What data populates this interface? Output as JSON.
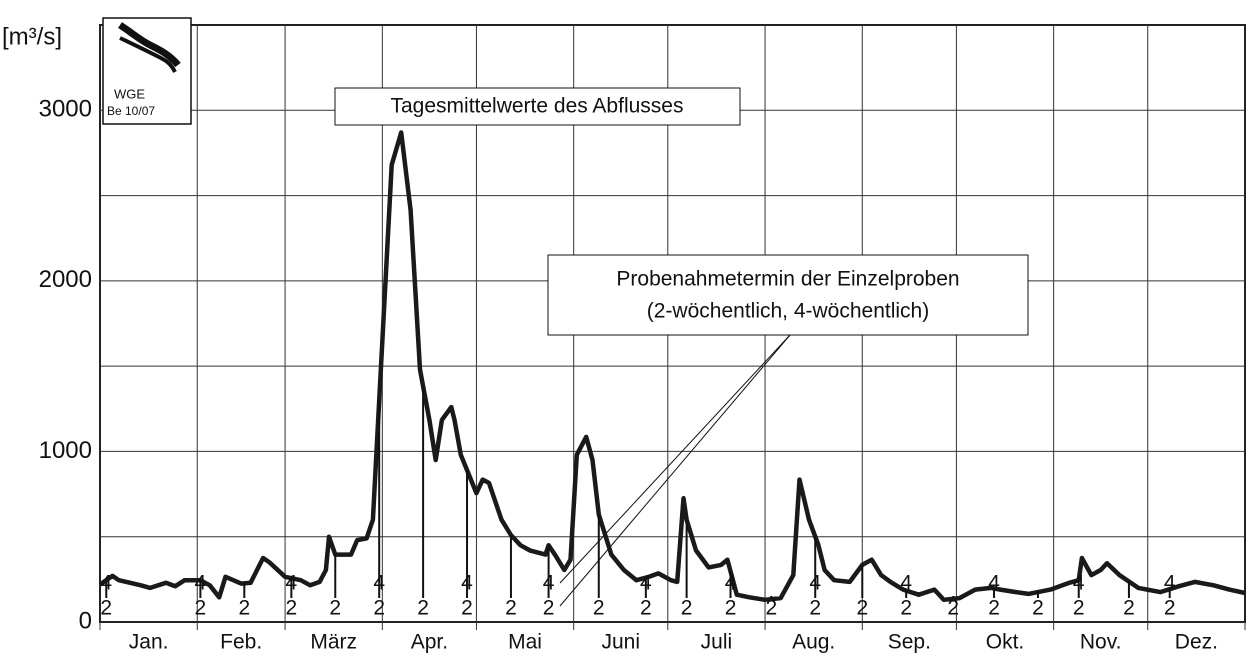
{
  "chart_data": {
    "type": "line",
    "ylabel": "[m³/s]",
    "title": "Tagesmittelwerte des Abflusses",
    "annotation": [
      "Probenahmetermin der Einzelproben",
      "(2-wöchentlich, 4-wöchentlich)"
    ],
    "logo": [
      "WGE",
      "Be 10/07"
    ],
    "months": [
      "Jan.",
      "Feb.",
      "März",
      "Apr.",
      "Mai",
      "Juni",
      "Juli",
      "Aug.",
      "Sep.",
      "Okt.",
      "Nov.",
      "Dez."
    ],
    "xlim": [
      0,
      365
    ],
    "xticks": [
      0,
      31,
      59,
      90,
      120,
      151,
      181,
      212,
      243,
      273,
      304,
      334,
      365
    ],
    "ylim": [
      0,
      3500
    ],
    "yticks": [
      0,
      1000,
      2000,
      3000
    ],
    "minor_yticks": [
      500,
      1500,
      2500,
      3500
    ],
    "grid": true,
    "color": "#1a1a1a",
    "x": [
      0,
      4,
      6,
      13,
      16,
      21,
      24,
      27,
      32,
      35,
      38,
      40,
      45,
      48,
      52,
      54,
      59,
      64,
      67,
      70,
      72,
      73,
      75,
      80,
      82,
      85,
      87,
      89,
      93,
      96,
      99,
      102,
      105,
      107,
      109,
      112,
      113,
      115,
      118,
      120,
      122,
      124,
      128,
      131,
      134,
      137,
      142,
      143,
      145,
      148,
      150,
      152,
      155,
      157,
      159,
      163,
      167,
      171,
      175,
      178,
      182,
      184,
      186,
      187,
      190,
      194,
      198,
      200,
      203,
      207,
      212,
      217,
      221,
      223,
      226,
      229,
      231,
      234,
      239,
      243,
      246,
      249,
      252,
      256,
      261,
      266,
      269,
      274,
      279,
      284,
      287,
      292,
      296,
      303,
      309,
      312,
      313,
      316,
      319,
      321,
      325,
      331,
      338,
      344,
      349,
      355,
      360,
      365
    ],
    "values": [
      220,
      270,
      245,
      215,
      200,
      230,
      210,
      245,
      245,
      215,
      145,
      265,
      225,
      230,
      375,
      350,
      265,
      245,
      215,
      235,
      305,
      500,
      395,
      395,
      480,
      490,
      600,
      1300,
      2680,
      2870,
      2415,
      1480,
      1185,
      950,
      1185,
      1260,
      1185,
      980,
      845,
      755,
      835,
      815,
      600,
      510,
      450,
      420,
      395,
      450,
      395,
      305,
      365,
      980,
      1085,
      950,
      630,
      395,
      305,
      245,
      265,
      285,
      245,
      235,
      725,
      600,
      420,
      320,
      335,
      365,
      160,
      145,
      130,
      140,
      275,
      835,
      600,
      450,
      305,
      245,
      235,
      335,
      365,
      275,
      235,
      190,
      160,
      190,
      130,
      140,
      190,
      200,
      190,
      175,
      165,
      190,
      230,
      245,
      375,
      275,
      305,
      345,
      275,
      200,
      175,
      210,
      235,
      215,
      190,
      170
    ],
    "sample_label_2": "2",
    "sample_label_4": "4",
    "samples_2": [
      2,
      32,
      46,
      61,
      75,
      89,
      103,
      117,
      131,
      143,
      159,
      174,
      187,
      201,
      214,
      228,
      243,
      257,
      272,
      285,
      299,
      312,
      328,
      341
    ],
    "samples_4": [
      2,
      32,
      61,
      89,
      117,
      143,
      174,
      201,
      228,
      257,
      285,
      312,
      341
    ]
  }
}
